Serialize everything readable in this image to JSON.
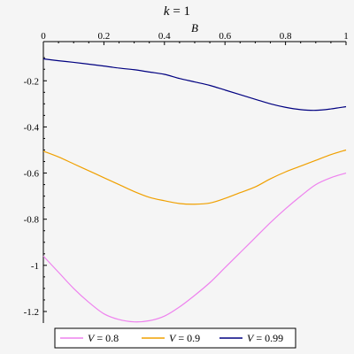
{
  "chart_data": {
    "type": "line",
    "title": "k = 1",
    "title_var": "k",
    "title_rest": " = 1",
    "xlabel": "B",
    "ylabel": "",
    "xlim": [
      0,
      1
    ],
    "ylim": [
      -1.25,
      -0.08
    ],
    "x_ticks": [
      0,
      0.2,
      0.4,
      0.6,
      0.8,
      1
    ],
    "x_tick_labels": [
      "0",
      "0.2",
      "0.4",
      "0.6",
      "0.8",
      "1"
    ],
    "y_ticks": [
      -0.2,
      -0.4,
      -0.6,
      -0.8,
      -1,
      -1.2
    ],
    "y_tick_labels": [
      "-0.2",
      "-0.4",
      "-0.6",
      "-0.8",
      "-1",
      "-1.2"
    ],
    "x_axis_position": "top",
    "grid": false,
    "legend_position": "bottom",
    "x": [
      0,
      0.05,
      0.1,
      0.15,
      0.2,
      0.25,
      0.3,
      0.35,
      0.4,
      0.45,
      0.5,
      0.55,
      0.6,
      0.65,
      0.7,
      0.75,
      0.8,
      0.85,
      0.9,
      0.95,
      1
    ],
    "series": [
      {
        "name": "V = 0.8",
        "legend_var": "V",
        "legend_rest": " = 0.8",
        "color": "#ee82ee",
        "values": [
          -0.96,
          -1.03,
          -1.1,
          -1.16,
          -1.21,
          -1.235,
          -1.245,
          -1.24,
          -1.22,
          -1.18,
          -1.13,
          -1.075,
          -1.01,
          -0.945,
          -0.88,
          -0.815,
          -0.755,
          -0.7,
          -0.65,
          -0.62,
          -0.6
        ]
      },
      {
        "name": "V = 0.9",
        "legend_var": "V",
        "legend_rest": " = 0.9",
        "color": "#f0a000",
        "values": [
          -0.505,
          -0.53,
          -0.56,
          -0.59,
          -0.62,
          -0.65,
          -0.68,
          -0.705,
          -0.72,
          -0.732,
          -0.735,
          -0.73,
          -0.71,
          -0.685,
          -0.66,
          -0.625,
          -0.595,
          -0.57,
          -0.545,
          -0.52,
          -0.5
        ]
      },
      {
        "name": "V = 0.99",
        "legend_var": "V",
        "legend_rest": " = 0.99",
        "color": "#000080",
        "values": [
          -0.105,
          -0.113,
          -0.12,
          -0.128,
          -0.136,
          -0.145,
          -0.152,
          -0.162,
          -0.172,
          -0.19,
          -0.205,
          -0.22,
          -0.24,
          -0.26,
          -0.28,
          -0.3,
          -0.315,
          -0.325,
          -0.328,
          -0.322,
          -0.312
        ]
      }
    ]
  }
}
